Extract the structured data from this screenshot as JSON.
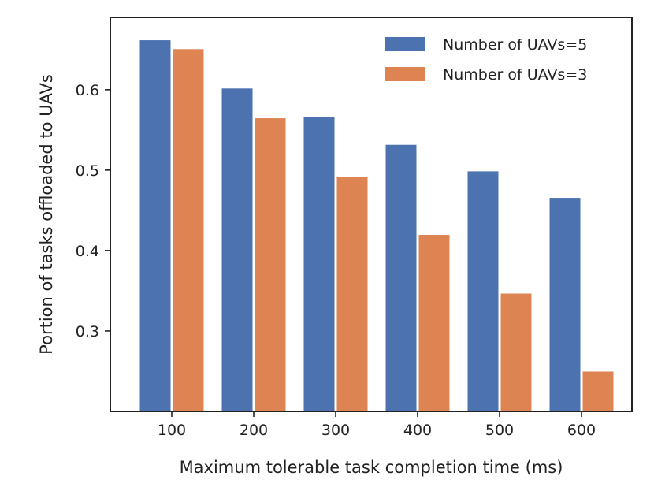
{
  "chart_data": {
    "type": "bar",
    "title": "",
    "xlabel": "Maximum tolerable task completion time (ms)",
    "ylabel": "Portion of tasks offloaded to UAVs",
    "categories": [
      "100",
      "200",
      "300",
      "400",
      "500",
      "600"
    ],
    "series": [
      {
        "name": "Number of UAVs=5",
        "color": "#4c72b0",
        "values": [
          0.662,
          0.602,
          0.567,
          0.532,
          0.499,
          0.466
        ]
      },
      {
        "name": "Number of UAVs=3",
        "color": "#dd8452",
        "values": [
          0.651,
          0.565,
          0.492,
          0.42,
          0.347,
          0.25
        ]
      }
    ],
    "ylim": [
      0.2,
      0.69
    ],
    "yticks": [
      "0.3",
      "0.4",
      "0.5",
      "0.6"
    ],
    "legend_position": "top-right",
    "grid": false
  }
}
